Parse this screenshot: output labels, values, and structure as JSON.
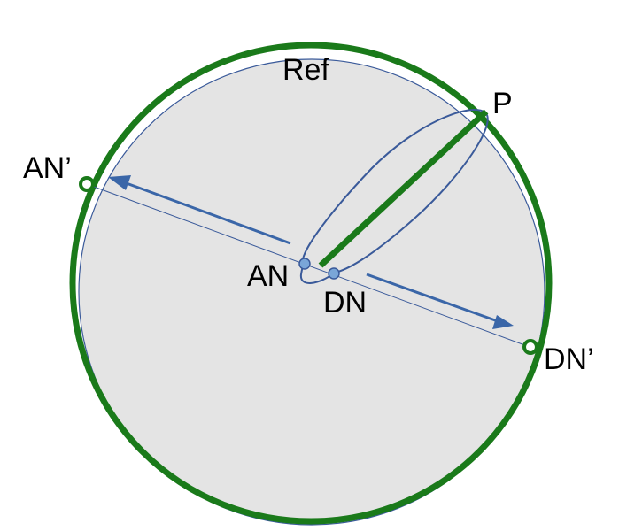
{
  "labels": {
    "ref": "Ref",
    "p": "P",
    "an_prime": "AN’",
    "an": "AN",
    "dn": "DN",
    "dn_prime": "DN’"
  },
  "colors": {
    "outer_circle": "#1a7a1a",
    "inner_disc_fill": "#e4e4e4",
    "inner_disc_stroke": "#3a5a9a",
    "orbit_line": "#3a5a9a",
    "arrow": "#3a66a8",
    "green_segment": "#1a7a1a",
    "node_dot": "#7aa6d8"
  }
}
